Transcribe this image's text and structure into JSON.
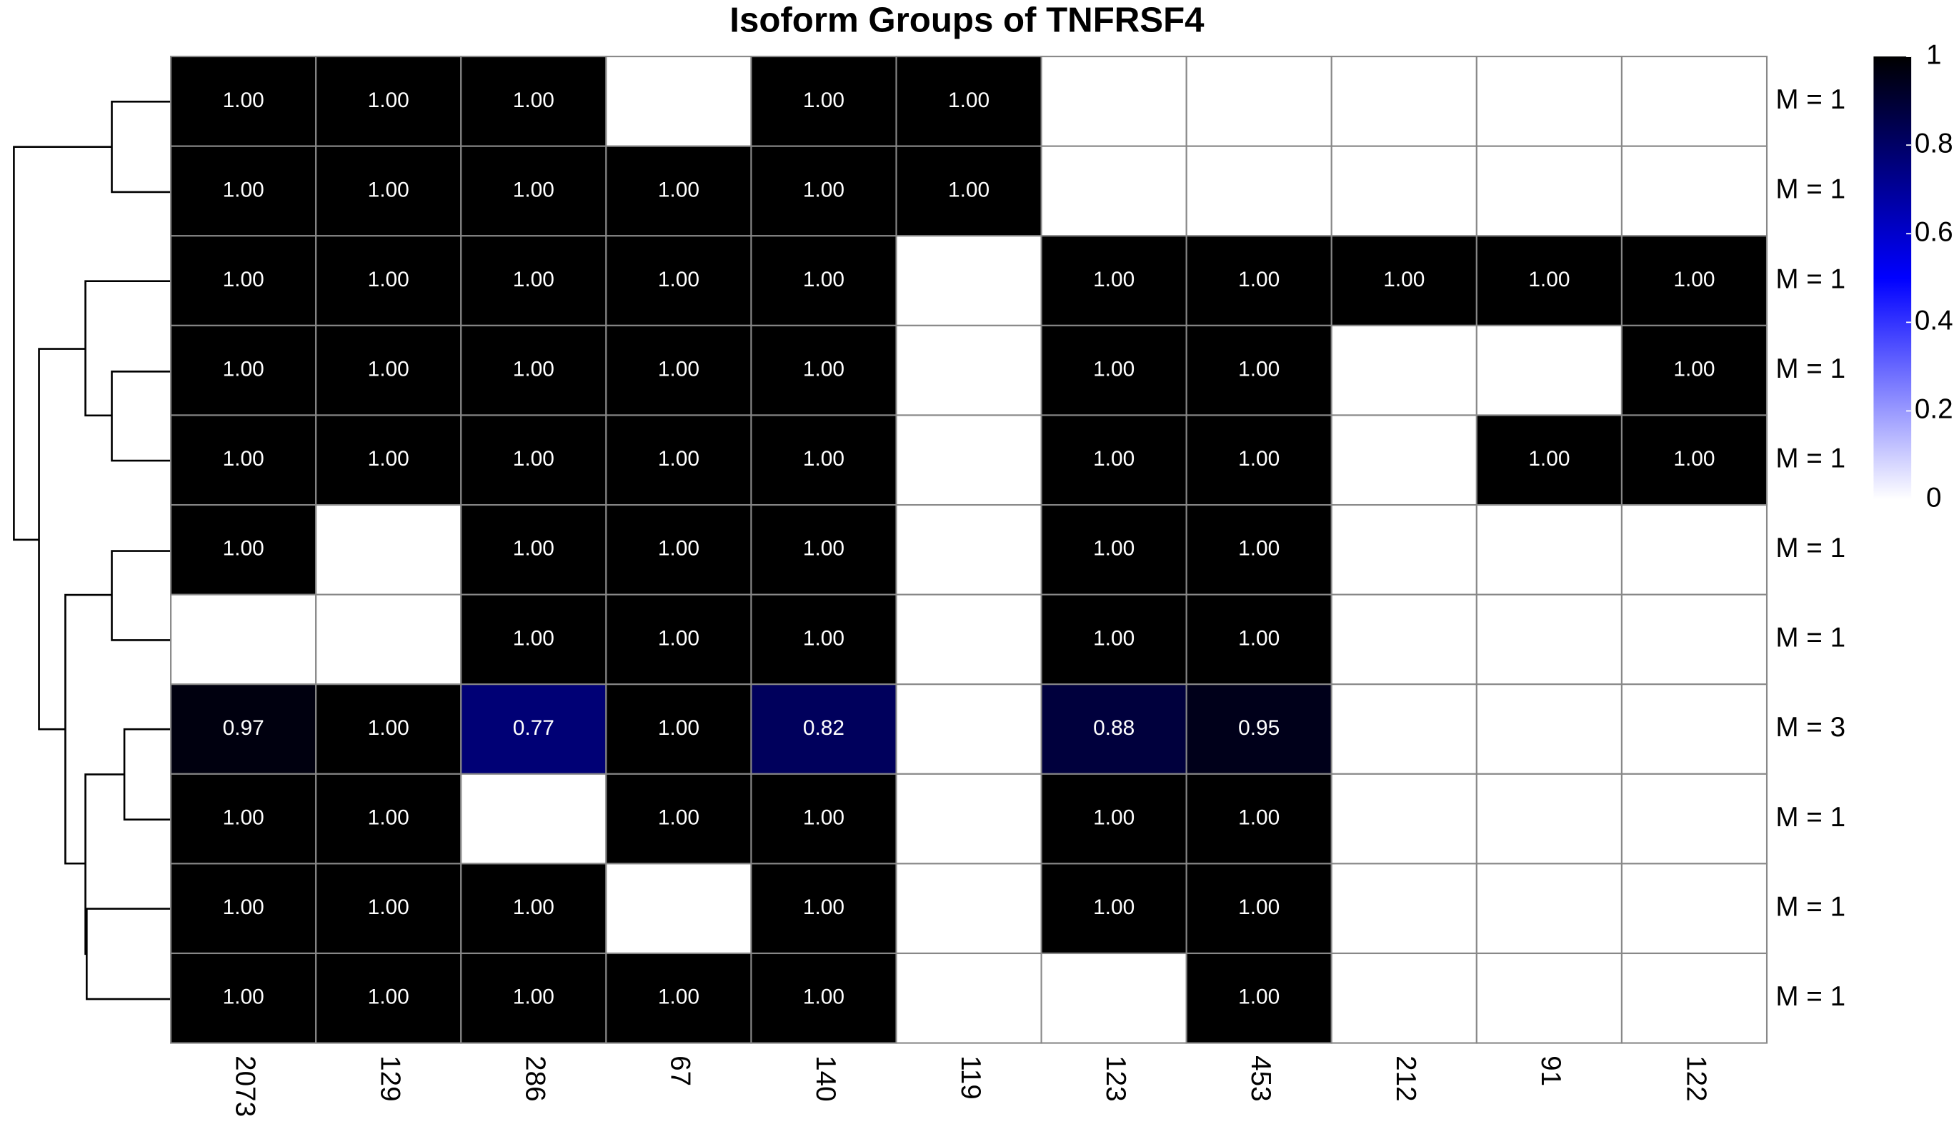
{
  "chart_data": {
    "type": "heatmap",
    "title": "Isoform Groups of TNFRSF4",
    "columns": [
      "2073",
      "129",
      "286",
      "67",
      "140",
      "119",
      "123",
      "453",
      "212",
      "91",
      "122"
    ],
    "rows": [
      "M = 1",
      "M = 1",
      "M = 1",
      "M = 1",
      "M = 1",
      "M = 1",
      "M = 1",
      "M = 3",
      "M = 1",
      "M = 1",
      "M = 1"
    ],
    "values": [
      [
        1,
        1,
        1,
        null,
        1,
        1,
        null,
        null,
        null,
        null,
        null
      ],
      [
        1,
        1,
        1,
        1,
        1,
        1,
        null,
        null,
        null,
        null,
        null
      ],
      [
        1,
        1,
        1,
        1,
        1,
        null,
        1,
        1,
        1,
        1,
        1
      ],
      [
        1,
        1,
        1,
        1,
        1,
        null,
        1,
        1,
        null,
        null,
        1
      ],
      [
        1,
        1,
        1,
        1,
        1,
        null,
        1,
        1,
        null,
        1,
        1
      ],
      [
        1,
        null,
        1,
        1,
        1,
        null,
        1,
        1,
        null,
        null,
        null
      ],
      [
        null,
        null,
        1,
        1,
        1,
        null,
        1,
        1,
        null,
        null,
        null
      ],
      [
        0.97,
        1,
        0.77,
        1,
        0.82,
        null,
        0.88,
        0.95,
        null,
        null,
        null
      ],
      [
        1,
        1,
        null,
        1,
        1,
        null,
        1,
        1,
        null,
        null,
        null
      ],
      [
        1,
        1,
        1,
        null,
        1,
        null,
        1,
        1,
        null,
        null,
        null
      ],
      [
        1,
        1,
        1,
        1,
        1,
        null,
        null,
        1,
        null,
        null,
        null
      ]
    ],
    "value_labels": [
      [
        "1.00",
        "1.00",
        "1.00",
        null,
        "1.00",
        "1.00",
        null,
        null,
        null,
        null,
        null
      ],
      [
        "1.00",
        "1.00",
        "1.00",
        "1.00",
        "1.00",
        "1.00",
        null,
        null,
        null,
        null,
        null
      ],
      [
        "1.00",
        "1.00",
        "1.00",
        "1.00",
        "1.00",
        null,
        "1.00",
        "1.00",
        "1.00",
        "1.00",
        "1.00"
      ],
      [
        "1.00",
        "1.00",
        "1.00",
        "1.00",
        "1.00",
        null,
        "1.00",
        "1.00",
        null,
        null,
        "1.00"
      ],
      [
        "1.00",
        "1.00",
        "1.00",
        "1.00",
        "1.00",
        null,
        "1.00",
        "1.00",
        null,
        "1.00",
        "1.00"
      ],
      [
        "1.00",
        null,
        "1.00",
        "1.00",
        "1.00",
        null,
        "1.00",
        "1.00",
        null,
        null,
        null
      ],
      [
        null,
        null,
        "1.00",
        "1.00",
        "1.00",
        null,
        "1.00",
        "1.00",
        null,
        null,
        null
      ],
      [
        "0.97",
        "1.00",
        "0.77",
        "1.00",
        "0.82",
        null,
        "0.88",
        "0.95",
        null,
        null,
        null
      ],
      [
        "1.00",
        "1.00",
        null,
        "1.00",
        "1.00",
        null,
        "1.00",
        "1.00",
        null,
        null,
        null
      ],
      [
        "1.00",
        "1.00",
        "1.00",
        null,
        "1.00",
        null,
        "1.00",
        "1.00",
        null,
        null,
        null
      ],
      [
        "1.00",
        "1.00",
        "1.00",
        "1.00",
        "1.00",
        null,
        null,
        "1.00",
        null,
        null,
        null
      ]
    ],
    "colorscale": [
      [
        0,
        "#ffffff"
      ],
      [
        0.5,
        "#0000ff"
      ],
      [
        1,
        "#000000"
      ]
    ],
    "zlim": [
      0,
      1
    ],
    "zticks": [
      0,
      0.2,
      0.4,
      0.6,
      0.8,
      1
    ]
  }
}
